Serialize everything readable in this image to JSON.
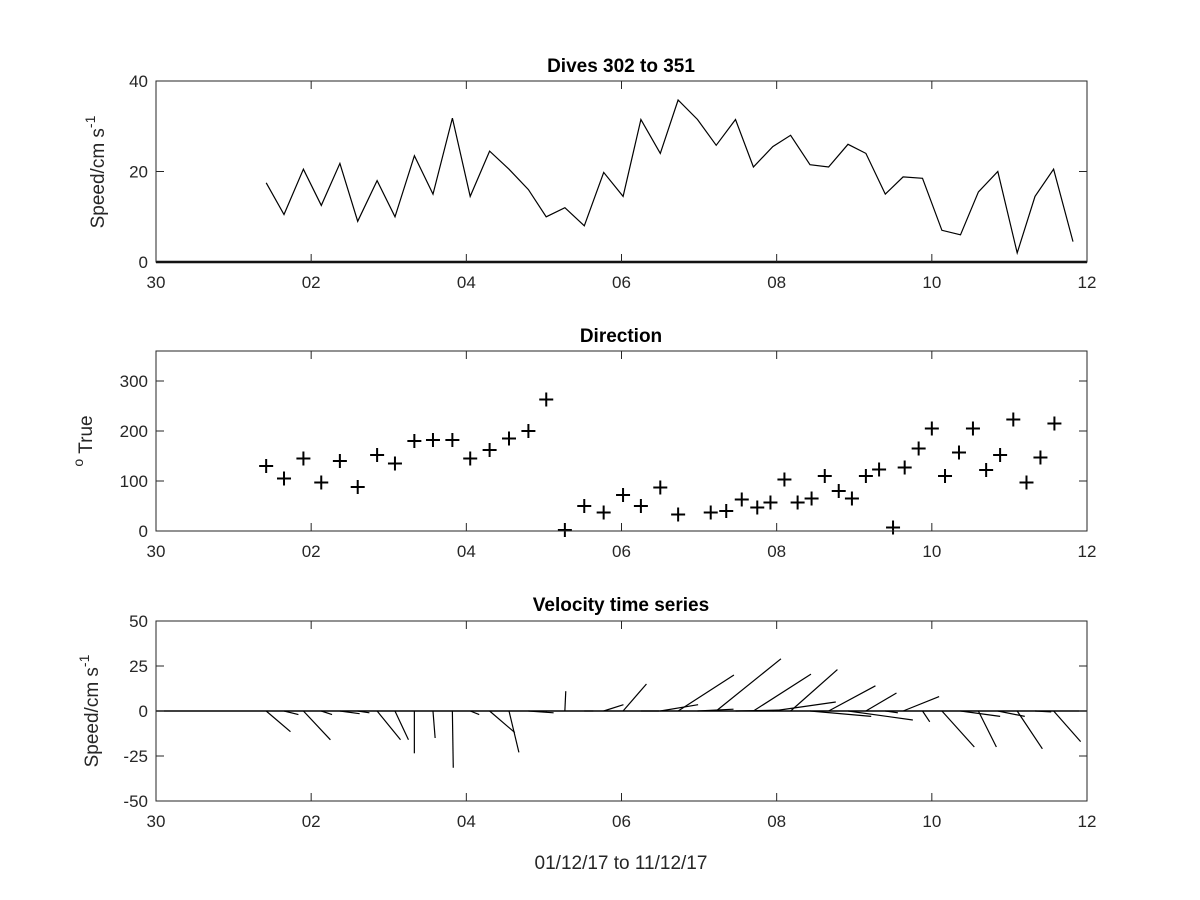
{
  "chart_data": [
    {
      "type": "line",
      "title": "Dives 302 to 351",
      "ylabel": "Speed/cm s",
      "ylabel_exponent": "-1",
      "xlim": [
        0,
        12
      ],
      "ylim": [
        0,
        40
      ],
      "xticks": [
        0,
        2,
        4,
        6,
        8,
        10,
        12
      ],
      "xtick_labels": [
        "30",
        "02",
        "04",
        "06",
        "08",
        "10",
        "12"
      ],
      "yticks": [
        0,
        20,
        40
      ],
      "ytick_labels": [
        "0",
        "20",
        "40"
      ],
      "grid": false,
      "x": [
        1.42,
        1.65,
        1.9,
        2.13,
        2.37,
        2.6,
        2.85,
        3.08,
        3.33,
        3.57,
        3.82,
        4.05,
        4.3,
        4.55,
        4.8,
        5.03,
        5.27,
        5.52,
        5.77,
        6.02,
        6.25,
        6.5,
        6.73,
        6.98,
        7.22,
        7.47,
        7.7,
        7.95,
        8.18,
        8.43,
        8.67,
        8.92,
        9.15,
        9.4,
        9.63,
        9.88,
        10.13,
        10.37,
        10.6,
        10.85,
        11.1,
        11.33,
        11.57,
        11.82
      ],
      "y": [
        17.5,
        10.5,
        20.5,
        12.5,
        21.8,
        9.0,
        18.0,
        10.0,
        23.5,
        15.0,
        31.8,
        14.5,
        24.5,
        20.5,
        16.0,
        10.0,
        12.0,
        8.0,
        19.8,
        14.5,
        31.5,
        24.0,
        35.8,
        31.5,
        25.8,
        31.5,
        21.0,
        25.5,
        28.0,
        21.5,
        21.0,
        26.0,
        24.0,
        15.0,
        18.8,
        18.5,
        7.0,
        6.0,
        15.5,
        20.0,
        2.0,
        14.5,
        20.5,
        4.5
      ]
    },
    {
      "type": "scatter",
      "title": "Direction",
      "ylabel": "True",
      "ylabel_superscript": "o",
      "xlim": [
        0,
        12
      ],
      "ylim": [
        0,
        360
      ],
      "xticks": [
        0,
        2,
        4,
        6,
        8,
        10,
        12
      ],
      "xtick_labels": [
        "30",
        "02",
        "04",
        "06",
        "08",
        "10",
        "12"
      ],
      "yticks": [
        0,
        100,
        200,
        300
      ],
      "ytick_labels": [
        "0",
        "100",
        "200",
        "300"
      ],
      "grid": false,
      "marker": "+",
      "x": [
        1.42,
        1.65,
        1.9,
        2.13,
        2.37,
        2.6,
        2.85,
        3.08,
        3.33,
        3.57,
        3.82,
        4.05,
        4.3,
        4.55,
        4.8,
        5.03,
        5.27,
        5.52,
        5.77,
        6.02,
        6.25,
        6.5,
        6.73,
        7.15,
        7.35,
        7.55,
        7.75,
        7.92,
        8.1,
        8.27,
        8.45,
        8.62,
        8.8,
        8.97,
        9.15,
        9.32,
        9.5,
        9.65,
        9.83,
        10.0,
        10.17,
        10.35,
        10.53,
        10.7,
        10.88,
        11.05,
        11.22,
        11.4,
        11.58
      ],
      "y": [
        130,
        105,
        145,
        97,
        140,
        88,
        152,
        135,
        180,
        182,
        182,
        145,
        162,
        185,
        200,
        263,
        2,
        50,
        37,
        72,
        50,
        87,
        33,
        37,
        40,
        63,
        47,
        57,
        103,
        57,
        65,
        110,
        80,
        65,
        110,
        123,
        7,
        127,
        165,
        205,
        110,
        157,
        205,
        122,
        152,
        223,
        97,
        147,
        215
      ]
    },
    {
      "type": "quiver",
      "title": "Velocity time series",
      "ylabel": "Speed/cm s",
      "ylabel_exponent": "-1",
      "xlabel": "01/12/17 to 11/12/17",
      "xlim": [
        0,
        12
      ],
      "ylim": [
        -50,
        50
      ],
      "xticks": [
        0,
        2,
        4,
        6,
        8,
        10,
        12
      ],
      "xtick_labels": [
        "30",
        "02",
        "04",
        "06",
        "08",
        "10",
        "12"
      ],
      "yticks": [
        -50,
        -25,
        0,
        25,
        50
      ],
      "ytick_labels": [
        "-50",
        "-25",
        "0",
        "25",
        "50"
      ],
      "grid": false,
      "x": [
        1.42,
        1.65,
        1.9,
        2.13,
        2.37,
        2.6,
        2.85,
        3.08,
        3.33,
        3.57,
        3.82,
        4.05,
        4.3,
        4.55,
        4.8,
        5.03,
        5.27,
        5.52,
        5.77,
        6.02,
        6.25,
        6.5,
        6.73,
        6.98,
        7.22,
        7.47,
        7.7,
        7.95,
        8.18,
        8.43,
        8.67,
        8.92,
        9.15,
        9.4,
        9.63,
        9.88,
        10.13,
        10.37,
        10.6,
        10.85,
        11.1,
        11.33,
        11.57
      ],
      "u": [
        13.5,
        8.0,
        15.0,
        6.0,
        11.0,
        6.5,
        13.0,
        7.5,
        0.0,
        1.2,
        0.5,
        5.0,
        14.0,
        5.5,
        14.0,
        0.0,
        0.5,
        5.0,
        11.0,
        13.0,
        10.0,
        21.0,
        31.0,
        20.0,
        36.0,
        24.0,
        32.0,
        35.0,
        26.0,
        34.0,
        26.0,
        36.0,
        17.0,
        7.0,
        20.0,
        4.0,
        18.0,
        22.0,
        10.0,
        15.0,
        14.0,
        9.0,
        15.0
      ],
      "v": [
        -11.5,
        -2.0,
        -16.0,
        -2.0,
        -1.5,
        -1.0,
        -16.0,
        -16.0,
        -23.5,
        -15.0,
        -31.5,
        -2.0,
        -12.0,
        -23.0,
        -1.0,
        -0.5,
        11.0,
        0.0,
        3.5,
        15.0,
        0.0,
        3.5,
        20.0,
        1.0,
        29.0,
        0.5,
        20.5,
        5.0,
        23.0,
        -3.0,
        14.0,
        -5.0,
        10.0,
        -1.0,
        8.0,
        -6.0,
        -20.0,
        -3.0,
        -20.0,
        -3.0,
        -21.0,
        -0.5,
        -17.0
      ]
    }
  ]
}
